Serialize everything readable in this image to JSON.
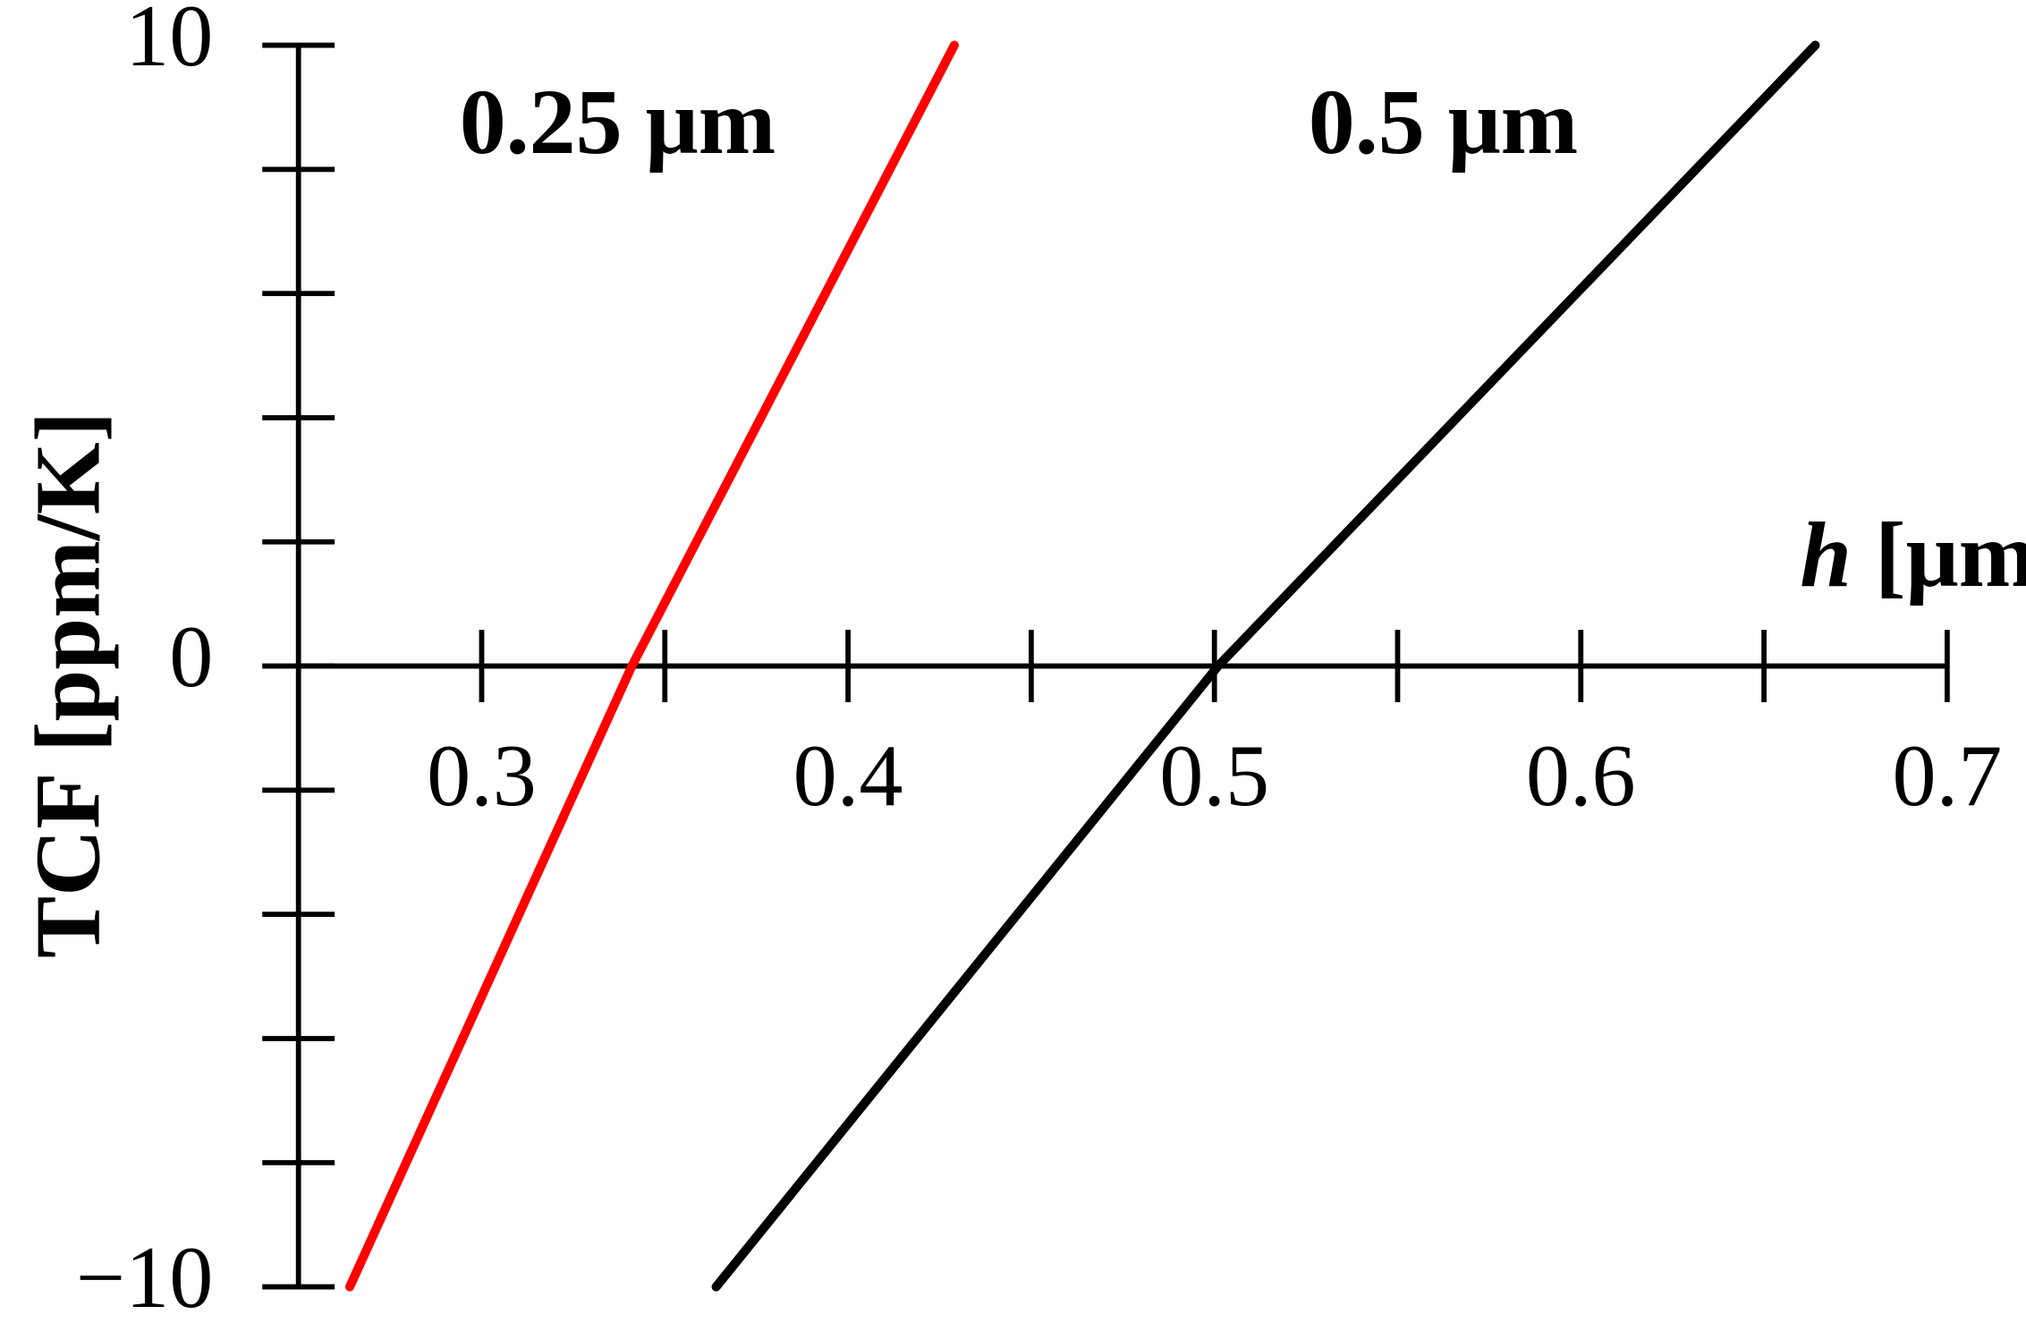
{
  "chart_data": {
    "type": "line",
    "x_label_symbol": "h",
    "x_label_unit": "[μm]",
    "y_label": "TCF [ppm/K]",
    "annotations": [
      "0.25 μm",
      "0.5 μm"
    ],
    "xlim": [
      0.25,
      0.7
    ],
    "ylim": [
      -10,
      10
    ],
    "xticks": [
      0.3,
      0.4,
      0.5,
      0.6,
      0.7
    ],
    "xminor_ticks": [
      0.35,
      0.45,
      0.55,
      0.65
    ],
    "yticks": [
      {
        "value": -10,
        "label": "−10"
      },
      0,
      10
    ],
    "yminor_ticks": [
      -8,
      -6,
      -4,
      -2,
      2,
      4,
      6,
      8
    ],
    "series": [
      {
        "name": "0.25 μm",
        "color": "#ff0000",
        "x": [
          0.264,
          0.341,
          0.429
        ],
        "values": [
          -10,
          0,
          10
        ]
      },
      {
        "name": "0.5 μm",
        "color": "#000000",
        "x": [
          0.364,
          0.501,
          0.664
        ],
        "values": [
          -10,
          0,
          10
        ]
      }
    ]
  }
}
